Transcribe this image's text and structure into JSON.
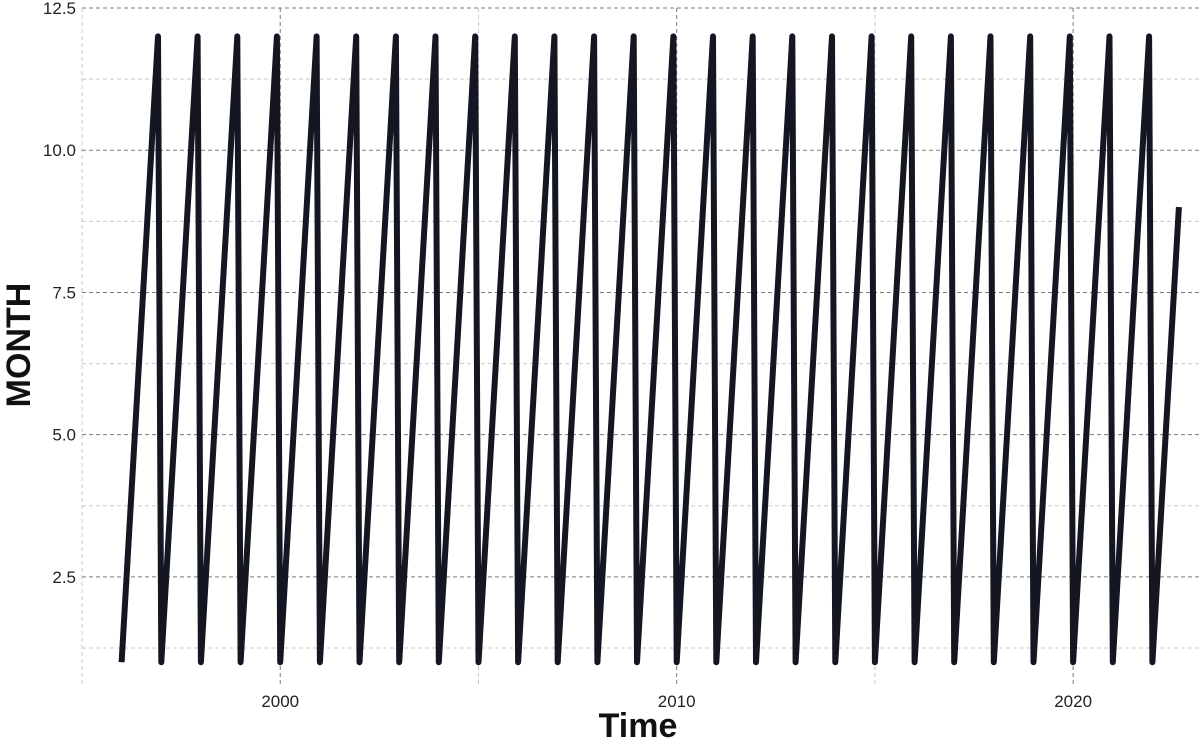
{
  "chart_data": {
    "type": "line",
    "title": "",
    "xlabel": "Time",
    "ylabel": "MONTH",
    "xlim": [
      1995.0,
      2023.2
    ],
    "ylim": [
      0.6,
      12.5
    ],
    "x_major_ticks": [
      2000,
      2010,
      2020
    ],
    "x_minor_gridlines": [
      1995,
      2005,
      2015
    ],
    "y_major_ticks": [
      2.5,
      5.0,
      7.5,
      10.0,
      12.5
    ],
    "y_major_tick_labels": [
      "2.5",
      "5.0",
      "7.5",
      "10.0",
      "12.5"
    ],
    "y_minor_gridlines": [
      1.25,
      3.75,
      6.25,
      8.75,
      11.25
    ],
    "grid": true,
    "grid_style": "dashed",
    "legend": "none",
    "line_color": "#141722",
    "series": [
      {
        "values": [
          {
            "x": "1996-01",
            "y": 1
          },
          {
            "x": "1996-12",
            "y": 12
          },
          {
            "x": "1997-01",
            "y": 1
          },
          {
            "x": "1997-12",
            "y": 12
          },
          {
            "x": "1998-01",
            "y": 1
          },
          {
            "x": "1998-12",
            "y": 12
          },
          {
            "x": "1999-01",
            "y": 1
          },
          {
            "x": "1999-12",
            "y": 12
          },
          {
            "x": "2000-01",
            "y": 1
          },
          {
            "x": "2000-12",
            "y": 12
          },
          {
            "x": "2001-01",
            "y": 1
          },
          {
            "x": "2001-12",
            "y": 12
          },
          {
            "x": "2002-01",
            "y": 1
          },
          {
            "x": "2002-12",
            "y": 12
          },
          {
            "x": "2003-01",
            "y": 1
          },
          {
            "x": "2003-12",
            "y": 12
          },
          {
            "x": "2004-01",
            "y": 1
          },
          {
            "x": "2004-12",
            "y": 12
          },
          {
            "x": "2005-01",
            "y": 1
          },
          {
            "x": "2005-12",
            "y": 12
          },
          {
            "x": "2006-01",
            "y": 1
          },
          {
            "x": "2006-12",
            "y": 12
          },
          {
            "x": "2007-01",
            "y": 1
          },
          {
            "x": "2007-12",
            "y": 12
          },
          {
            "x": "2008-01",
            "y": 1
          },
          {
            "x": "2008-12",
            "y": 12
          },
          {
            "x": "2009-01",
            "y": 1
          },
          {
            "x": "2009-12",
            "y": 12
          },
          {
            "x": "2010-01",
            "y": 1
          },
          {
            "x": "2010-12",
            "y": 12
          },
          {
            "x": "2011-01",
            "y": 1
          },
          {
            "x": "2011-12",
            "y": 12
          },
          {
            "x": "2012-01",
            "y": 1
          },
          {
            "x": "2012-12",
            "y": 12
          },
          {
            "x": "2013-01",
            "y": 1
          },
          {
            "x": "2013-12",
            "y": 12
          },
          {
            "x": "2014-01",
            "y": 1
          },
          {
            "x": "2014-12",
            "y": 12
          },
          {
            "x": "2015-01",
            "y": 1
          },
          {
            "x": "2015-12",
            "y": 12
          },
          {
            "x": "2016-01",
            "y": 1
          },
          {
            "x": "2016-12",
            "y": 12
          },
          {
            "x": "2017-01",
            "y": 1
          },
          {
            "x": "2017-12",
            "y": 12
          },
          {
            "x": "2018-01",
            "y": 1
          },
          {
            "x": "2018-12",
            "y": 12
          },
          {
            "x": "2019-01",
            "y": 1
          },
          {
            "x": "2019-12",
            "y": 12
          },
          {
            "x": "2020-01",
            "y": 1
          },
          {
            "x": "2020-12",
            "y": 12
          },
          {
            "x": "2021-01",
            "y": 1
          },
          {
            "x": "2021-12",
            "y": 12
          },
          {
            "x": "2022-01",
            "y": 1
          },
          {
            "x": "2022-09",
            "y": 9
          }
        ]
      }
    ]
  }
}
